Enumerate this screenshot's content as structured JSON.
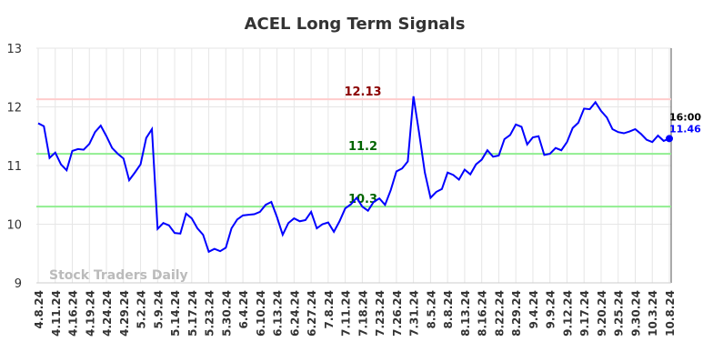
{
  "chart_data": {
    "type": "line",
    "title": "ACEL Long Term Signals",
    "categories": [
      "4.8.24",
      null,
      null,
      "4.11.24",
      null,
      null,
      "4.16.24",
      null,
      null,
      "4.19.24",
      null,
      null,
      "4.24.24",
      null,
      null,
      "4.29.24",
      null,
      null,
      "5.2.24",
      null,
      null,
      "5.9.24",
      null,
      null,
      "5.14.24",
      null,
      null,
      "5.17.24",
      null,
      null,
      "5.23.24",
      null,
      null,
      "5.30.24",
      null,
      null,
      "6.4.24",
      null,
      null,
      "6.10.24",
      null,
      null,
      "6.13.24",
      null,
      null,
      "6.24.24",
      null,
      null,
      "6.27.24",
      null,
      null,
      "7.8.24",
      null,
      null,
      "7.11.24",
      null,
      null,
      "7.18.24",
      null,
      null,
      "7.23.24",
      null,
      null,
      "7.26.24",
      null,
      null,
      "7.31.24",
      null,
      null,
      "8.5.24",
      null,
      null,
      "8.8.24",
      null,
      null,
      "8.13.24",
      null,
      null,
      "8.16.24",
      null,
      null,
      "8.22.24",
      null,
      null,
      "8.29.24",
      null,
      null,
      "9.4.24",
      null,
      null,
      "9.9.24",
      null,
      null,
      "9.12.24",
      null,
      null,
      "9.17.24",
      null,
      null,
      "9.20.24",
      null,
      null,
      "9.25.24",
      null,
      null,
      "9.30.24",
      null,
      null,
      "10.3.24",
      null,
      null,
      "10.8.24"
    ],
    "series": [
      {
        "name": "ACEL",
        "color": "#0000ff",
        "values": [
          11.72,
          11.67,
          11.13,
          11.22,
          11.02,
          10.92,
          11.25,
          11.28,
          11.27,
          11.37,
          11.57,
          11.68,
          11.5,
          11.3,
          11.2,
          11.12,
          10.75,
          10.88,
          11.02,
          11.47,
          11.62,
          9.92,
          10.02,
          9.98,
          9.85,
          9.84,
          10.18,
          10.1,
          9.93,
          9.82,
          9.53,
          9.58,
          9.54,
          9.6,
          9.93,
          10.08,
          10.15,
          10.16,
          10.17,
          10.21,
          10.33,
          10.38,
          10.12,
          9.82,
          10.02,
          10.1,
          10.05,
          10.07,
          10.21,
          9.93,
          10.0,
          10.03,
          9.87,
          10.05,
          10.27,
          10.34,
          10.45,
          10.3,
          10.23,
          10.38,
          10.44,
          10.33,
          10.58,
          10.9,
          10.95,
          11.07,
          12.18,
          11.55,
          10.88,
          10.45,
          10.55,
          10.6,
          10.88,
          10.84,
          10.76,
          10.93,
          10.85,
          11.02,
          11.1,
          11.26,
          11.15,
          11.17,
          11.45,
          11.52,
          11.7,
          11.66,
          11.36,
          11.48,
          11.5,
          11.18,
          11.2,
          11.3,
          11.26,
          11.4,
          11.64,
          11.73,
          11.97,
          11.96,
          12.08,
          11.93,
          11.82,
          11.62,
          11.57,
          11.55,
          11.58,
          11.62,
          11.54,
          11.44,
          11.4,
          11.51,
          11.42,
          11.46
        ]
      }
    ],
    "hlines": [
      {
        "value": 12.13,
        "color": "#ffcccc",
        "label_color": "#8b0000"
      },
      {
        "value": 11.2,
        "color": "#90ee90",
        "label_color": "#006400"
      },
      {
        "value": 10.3,
        "color": "#90ee90",
        "label_color": "#006400"
      }
    ],
    "last_time": "16:00",
    "watermark": "Stock Traders Daily",
    "ylim": [
      9,
      13
    ],
    "yticks": [
      9,
      10,
      11,
      12,
      13
    ],
    "grid": true
  }
}
